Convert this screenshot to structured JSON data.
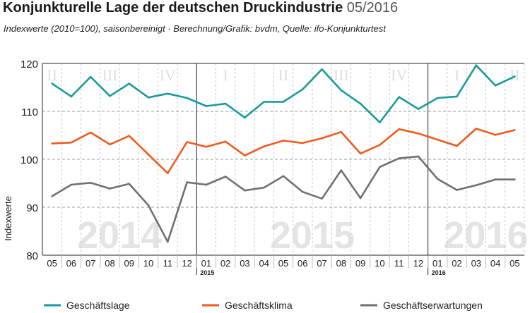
{
  "header": {
    "title": "Konjunkturelle Lage der deutschen Druckindustrie",
    "title_date": "05/2016",
    "subtitle": "Indexwerte (2010=100), saisonbereinigt · Berechnung/Grafik: bvdm, Quelle: ifo-Konjunkturtest"
  },
  "chart_data": {
    "type": "line",
    "ylabel": "Indexwerte",
    "ylim": [
      80,
      120
    ],
    "yticks": [
      80,
      90,
      100,
      110,
      120
    ],
    "categories": [
      "05",
      "06",
      "07",
      "08",
      "09",
      "10",
      "11",
      "12",
      "01",
      "02",
      "03",
      "04",
      "05",
      "06",
      "07",
      "08",
      "09",
      "10",
      "11",
      "12",
      "01",
      "02",
      "03",
      "04",
      "05"
    ],
    "year_markers": [
      {
        "label": "2015",
        "index": 8
      },
      {
        "label": "2016",
        "index": 20
      }
    ],
    "year_watermarks": [
      {
        "label": "2014",
        "index": 3.5
      },
      {
        "label": "2015",
        "index": 13.5
      },
      {
        "label": "2016",
        "index": 22.5
      }
    ],
    "quarter_labels": [
      {
        "label": "II",
        "index": 0
      },
      {
        "label": "III",
        "index": 3
      },
      {
        "label": "IV",
        "index": 6
      },
      {
        "label": "I",
        "index": 9
      },
      {
        "label": "II",
        "index": 12
      },
      {
        "label": "III",
        "index": 15
      },
      {
        "label": "IV",
        "index": 18
      },
      {
        "label": "I",
        "index": 21
      },
      {
        "label": "II",
        "index": 24
      }
    ],
    "series": [
      {
        "name": "Geschäftslage",
        "color": "#1a9a9a",
        "values": [
          115.8,
          113.1,
          117.2,
          113.2,
          115.8,
          112.9,
          113.7,
          112.8,
          111.1,
          111.6,
          108.7,
          112.0,
          112.0,
          114.6,
          118.8,
          114.4,
          111.6,
          107.7,
          113.0,
          110.5,
          112.8,
          113.1,
          119.6,
          115.4,
          117.3
        ]
      },
      {
        "name": "Geschäftsklima",
        "color": "#f05a1e",
        "values": [
          103.3,
          103.5,
          105.6,
          103.1,
          104.9,
          101.0,
          97.1,
          103.6,
          102.6,
          103.7,
          100.8,
          102.7,
          103.9,
          103.4,
          104.4,
          105.7,
          101.2,
          103.0,
          106.3,
          105.4,
          104.1,
          102.8,
          106.4,
          105.1,
          106.1
        ]
      },
      {
        "name": "Geschäftserwartungen",
        "color": "#707070",
        "values": [
          92.3,
          94.7,
          95.1,
          93.9,
          94.9,
          90.4,
          82.8,
          95.2,
          94.7,
          96.4,
          93.5,
          94.1,
          96.5,
          93.2,
          91.8,
          97.7,
          91.9,
          98.4,
          100.2,
          100.6,
          95.9,
          93.6,
          94.6,
          95.8,
          95.8
        ]
      }
    ],
    "grid": true,
    "legend_position": "bottom"
  }
}
